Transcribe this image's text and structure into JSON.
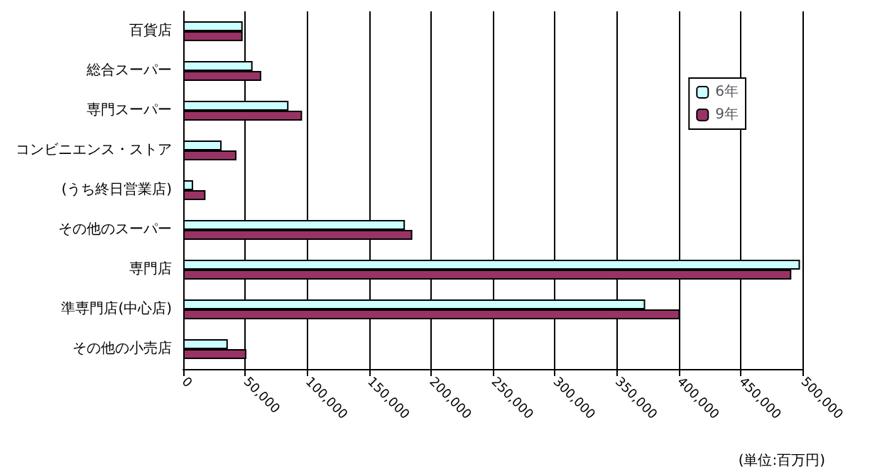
{
  "chart_data": {
    "type": "bar",
    "orientation": "horizontal",
    "categories": [
      "百貨店",
      "総合スーパー",
      "専門スーパー",
      "コンビニエンス・ストア",
      "(うち終日営業店)",
      "その他のスーパー",
      "専門店",
      "準専門店(中心店)",
      "その他の小売店"
    ],
    "series": [
      {
        "name": "6年",
        "color": "#ccffff",
        "values": [
          48000,
          56000,
          85000,
          31000,
          8000,
          179000,
          498000,
          373000,
          36000
        ]
      },
      {
        "name": "9年",
        "color": "#993366",
        "values": [
          48000,
          63000,
          96000,
          43000,
          18000,
          185000,
          491000,
          401000,
          51000
        ]
      }
    ],
    "xlim": [
      0,
      500000
    ],
    "xticks": [
      {
        "value": 0,
        "label": "0"
      },
      {
        "value": 50000,
        "label": "50,000"
      },
      {
        "value": 100000,
        "label": "100,000"
      },
      {
        "value": 150000,
        "label": "150,000"
      },
      {
        "value": 200000,
        "label": "200,000"
      },
      {
        "value": 250000,
        "label": "250,000"
      },
      {
        "value": 300000,
        "label": "300,000"
      },
      {
        "value": 350000,
        "label": "350,000"
      },
      {
        "value": 400000,
        "label": "400,000"
      },
      {
        "value": 450000,
        "label": "450,000"
      },
      {
        "value": 500000,
        "label": "500,000"
      }
    ],
    "grid": "x",
    "legend": "top right",
    "annotations": [
      "(単位:百万円)"
    ]
  }
}
